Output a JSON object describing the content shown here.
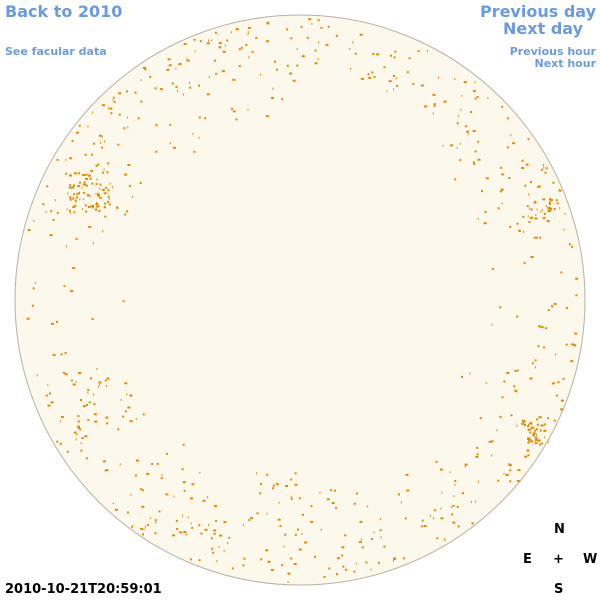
{
  "links": {
    "back": "Back to 2010",
    "facular": "See facular data",
    "previous_day": "Previous day",
    "next_day": "Next day",
    "previous_hour": "Previous hour",
    "next_hour": "Next hour"
  },
  "timestamp": "2010-10-21T20:59:01",
  "compass": {
    "north": "N",
    "south": "S",
    "east": "E",
    "west": "W",
    "center": "+"
  }
}
